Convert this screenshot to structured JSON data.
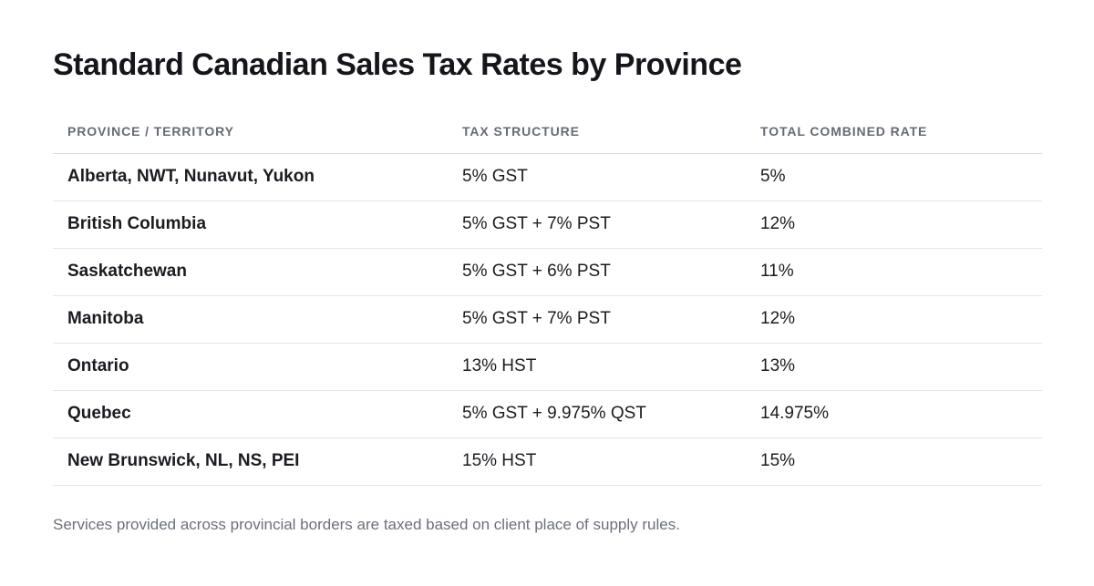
{
  "title": "Standard Canadian Sales Tax Rates by Province",
  "table": {
    "headers": [
      "PROVINCE / TERRITORY",
      "TAX STRUCTURE",
      "TOTAL COMBINED RATE"
    ],
    "rows": [
      {
        "province": "Alberta, NWT, Nunavut, Yukon",
        "structure": "5% GST",
        "rate": "5%"
      },
      {
        "province": "British Columbia",
        "structure": "5% GST + 7% PST",
        "rate": "12%"
      },
      {
        "province": "Saskatchewan",
        "structure": "5% GST + 6% PST",
        "rate": "11%"
      },
      {
        "province": "Manitoba",
        "structure": "5% GST + 7% PST",
        "rate": "12%"
      },
      {
        "province": "Ontario",
        "structure": "13% HST",
        "rate": "13%"
      },
      {
        "province": "Quebec",
        "structure": "5% GST + 9.975% QST",
        "rate": "14.975%"
      },
      {
        "province": "New Brunswick, NL, NS, PEI",
        "structure": "15% HST",
        "rate": "15%"
      }
    ]
  },
  "footnote": "Services provided across provincial borders are taxed based on client place of supply rules."
}
